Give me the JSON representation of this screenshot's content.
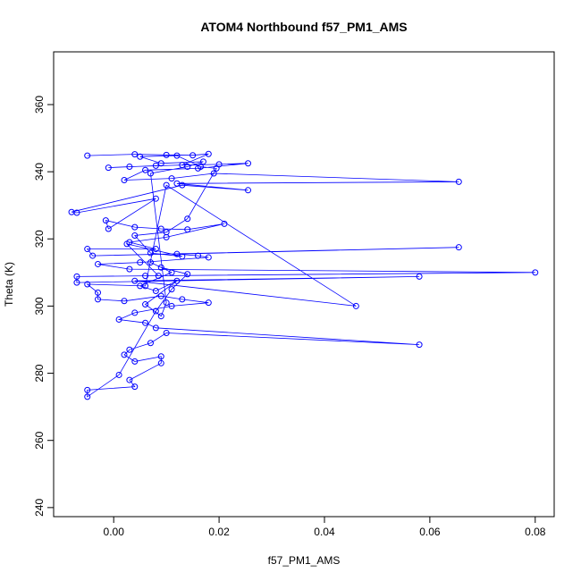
{
  "chart_data": {
    "type": "scatter-line",
    "title": "ATOM4 Northbound f57_PM1_AMS",
    "x_label": "f57_PM1_AMS",
    "y_label": "Theta (K)",
    "color": "#0000ff",
    "xlim": [
      -0.0114,
      0.0836
    ],
    "ylim": [
      237.3,
      375.7
    ],
    "xticks": [
      {
        "value": 0,
        "label": "0.00"
      },
      0.02,
      0.04,
      0.06,
      0.08
    ],
    "yticks": [
      240,
      260,
      280,
      300,
      320,
      340,
      360
    ],
    "x": [
      -0.005,
      0.004,
      0.01,
      0.015,
      0.018,
      0.013,
      0.003,
      -0.001,
      0.008,
      0.02,
      0.0255,
      0.016,
      0.006,
      0.002,
      0.011,
      0.019,
      0.0655,
      0.012,
      0.0255,
      0.013,
      -0.008,
      -0.007,
      0.008,
      -0.001,
      -0.0015,
      0.004,
      0.009,
      0.014,
      0.021,
      0.01,
      0.003,
      0.008,
      -0.005,
      -0.004,
      0.0655,
      0.012,
      0.016,
      0.018,
      0.005,
      -0.003,
      0.003,
      0.08,
      0.006,
      -0.007,
      -0.007,
      0.058,
      0.004,
      0.046,
      0.01,
      0.006,
      -0.005,
      -0.003,
      -0.003,
      0.002,
      0.009,
      0.013,
      0.018,
      0.011,
      0.004,
      0.001,
      0.006,
      0.008,
      0.058,
      0.01,
      0.007,
      0.003,
      0.002,
      0.004,
      0.009,
      0.009,
      0.003,
      0.004,
      -0.005,
      -0.005,
      0.001,
      0.008,
      0.011,
      0.014,
      0.009,
      0.007,
      0.011,
      0.005,
      0.008,
      0.012,
      0.006,
      0.009,
      0.01,
      0.007,
      0.014,
      0.017,
      0.009,
      0.005,
      0.012,
      0.0165,
      0.0195,
      0.014,
      0.01,
      0.004,
      0.007,
      0.013,
      0.0025,
      0.0085
    ],
    "values": [
      344.8,
      345.2,
      345.0,
      344.9,
      345.3,
      342.0,
      341.5,
      341.2,
      341.8,
      342.2,
      342.5,
      341.0,
      340.5,
      337.5,
      338.0,
      339.5,
      337.0,
      336.5,
      334.5,
      336.0,
      328.0,
      327.8,
      332.0,
      323.0,
      325.5,
      323.5,
      323.0,
      322.8,
      324.5,
      320.5,
      319.0,
      317.0,
      317.0,
      315.0,
      317.5,
      315.5,
      315.0,
      314.5,
      313.0,
      312.5,
      311.0,
      310.0,
      309.0,
      308.8,
      307.0,
      308.8,
      307.5,
      300.0,
      336.0,
      306.0,
      306.5,
      304.0,
      302.0,
      301.5,
      303.0,
      302.0,
      301.0,
      300.0,
      298.0,
      296.0,
      295.0,
      293.5,
      288.5,
      292.0,
      289.0,
      287.0,
      285.5,
      283.5,
      285.0,
      283.0,
      278.0,
      276.0,
      275.0,
      273.0,
      279.5,
      298.5,
      305.0,
      309.5,
      311.5,
      313.0,
      310.0,
      306.0,
      304.5,
      307.5,
      300.5,
      297.0,
      301.0,
      339.5,
      341.5,
      343.0,
      342.5,
      344.5,
      344.8,
      341.5,
      341.0,
      326.0,
      322.0,
      321.0,
      315.8,
      314.8,
      318.5,
      309.0
    ]
  }
}
